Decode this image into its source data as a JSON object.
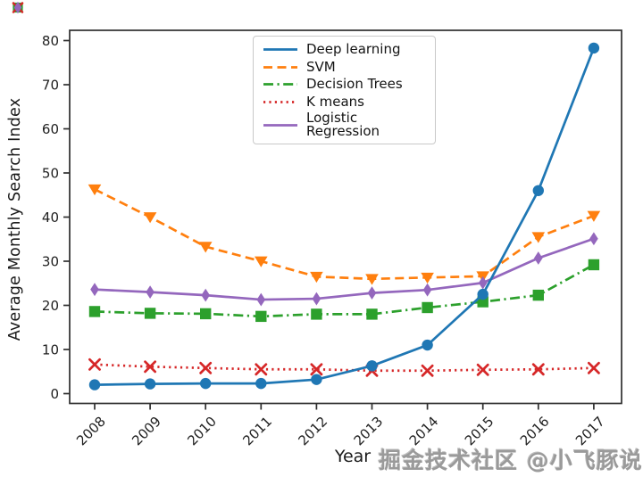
{
  "figure": {
    "watermark": "掘金技术社区 @小飞豚说"
  },
  "chart_data": {
    "type": "line",
    "title": "",
    "xlabel": "Year",
    "ylabel": "Average Monthly Search Index",
    "x": [
      2008,
      2009,
      2010,
      2011,
      2012,
      2013,
      2014,
      2015,
      2016,
      2017
    ],
    "y_ticks": [
      0,
      10,
      20,
      30,
      40,
      50,
      60,
      70,
      80
    ],
    "ylim": [
      -2.3,
      82.4
    ],
    "grid": false,
    "legend_position": "upper-center-left inside plot",
    "axis_color": "#2e2e2e",
    "series": [
      {
        "name": "Deep learning",
        "color": "#1f77b4",
        "line_style": "solid",
        "marker": "circle",
        "values": [
          2.0,
          2.2,
          2.3,
          2.3,
          3.2,
          6.3,
          11.0,
          22.5,
          46.0,
          78.3
        ]
      },
      {
        "name": "SVM",
        "color": "#ff7f0e",
        "line_style": "dashed",
        "marker": "triangle-down",
        "values": [
          46.3,
          40.0,
          33.3,
          30.0,
          26.5,
          26.0,
          26.3,
          26.6,
          35.5,
          40.3
        ]
      },
      {
        "name": "Decision Trees",
        "color": "#2ca02c",
        "line_style": "dashdot",
        "marker": "square",
        "values": [
          18.6,
          18.2,
          18.1,
          17.5,
          18.0,
          18.0,
          19.5,
          20.8,
          22.3,
          29.2
        ]
      },
      {
        "name": "K means",
        "color": "#d62728",
        "line_style": "dotted",
        "marker": "x",
        "values": [
          6.6,
          6.1,
          5.8,
          5.5,
          5.5,
          5.2,
          5.2,
          5.4,
          5.5,
          5.8
        ]
      },
      {
        "name": "Logistic Regression",
        "color": "#9467bd",
        "line_style": "solid",
        "marker": "diamond",
        "values": [
          23.6,
          23.0,
          22.3,
          21.3,
          21.5,
          22.8,
          23.5,
          25.1,
          30.7,
          35.1
        ]
      }
    ]
  }
}
